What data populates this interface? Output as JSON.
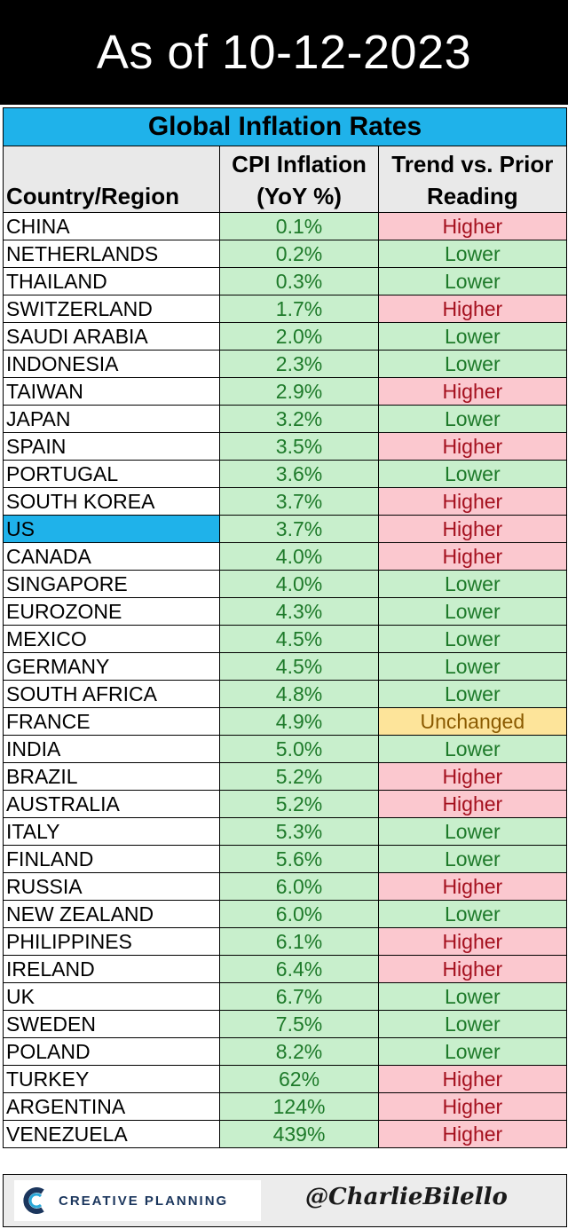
{
  "banner": {
    "text": "As of 10-12-2023"
  },
  "table": {
    "title": "Global Inflation Rates",
    "headers": {
      "country": "Country/Region",
      "cpi_line1": "CPI Inflation",
      "cpi_line2": "(YoY %)",
      "trend_line1": "Trend vs. Prior",
      "trend_line2": "Reading"
    },
    "rows": [
      {
        "country": "CHINA",
        "cpi": "0.1%",
        "trend": "Higher"
      },
      {
        "country": "NETHERLANDS",
        "cpi": "0.2%",
        "trend": "Lower"
      },
      {
        "country": "THAILAND",
        "cpi": "0.3%",
        "trend": "Lower"
      },
      {
        "country": "SWITZERLAND",
        "cpi": "1.7%",
        "trend": "Higher"
      },
      {
        "country": "SAUDI ARABIA",
        "cpi": "2.0%",
        "trend": "Lower"
      },
      {
        "country": "INDONESIA",
        "cpi": "2.3%",
        "trend": "Lower"
      },
      {
        "country": "TAIWAN",
        "cpi": "2.9%",
        "trend": "Higher"
      },
      {
        "country": "JAPAN",
        "cpi": "3.2%",
        "trend": "Lower"
      },
      {
        "country": "SPAIN",
        "cpi": "3.5%",
        "trend": "Higher"
      },
      {
        "country": "PORTUGAL",
        "cpi": "3.6%",
        "trend": "Lower"
      },
      {
        "country": "SOUTH KOREA",
        "cpi": "3.7%",
        "trend": "Higher"
      },
      {
        "country": "US",
        "cpi": "3.7%",
        "trend": "Higher",
        "highlight": true
      },
      {
        "country": "CANADA",
        "cpi": "4.0%",
        "trend": "Higher"
      },
      {
        "country": "SINGAPORE",
        "cpi": "4.0%",
        "trend": "Lower"
      },
      {
        "country": "EUROZONE",
        "cpi": "4.3%",
        "trend": "Lower"
      },
      {
        "country": "MEXICO",
        "cpi": "4.5%",
        "trend": "Lower"
      },
      {
        "country": "GERMANY",
        "cpi": "4.5%",
        "trend": "Lower"
      },
      {
        "country": "SOUTH AFRICA",
        "cpi": "4.8%",
        "trend": "Lower"
      },
      {
        "country": "FRANCE",
        "cpi": "4.9%",
        "trend": "Unchanged"
      },
      {
        "country": "INDIA",
        "cpi": "5.0%",
        "trend": "Lower"
      },
      {
        "country": "BRAZIL",
        "cpi": "5.2%",
        "trend": "Higher"
      },
      {
        "country": "AUSTRALIA",
        "cpi": "5.2%",
        "trend": "Higher"
      },
      {
        "country": "ITALY",
        "cpi": "5.3%",
        "trend": "Lower"
      },
      {
        "country": "FINLAND",
        "cpi": "5.6%",
        "trend": "Lower"
      },
      {
        "country": "RUSSIA",
        "cpi": "6.0%",
        "trend": "Higher"
      },
      {
        "country": "NEW ZEALAND",
        "cpi": "6.0%",
        "trend": "Lower"
      },
      {
        "country": "PHILIPPINES",
        "cpi": "6.1%",
        "trend": "Higher"
      },
      {
        "country": "IRELAND",
        "cpi": "6.4%",
        "trend": "Higher"
      },
      {
        "country": "UK",
        "cpi": "6.7%",
        "trend": "Lower"
      },
      {
        "country": "SWEDEN",
        "cpi": "7.5%",
        "trend": "Lower"
      },
      {
        "country": "POLAND",
        "cpi": "8.2%",
        "trend": "Lower"
      },
      {
        "country": "TURKEY",
        "cpi": "62%",
        "trend": "Higher"
      },
      {
        "country": "ARGENTINA",
        "cpi": "124%",
        "trend": "Higher"
      },
      {
        "country": "VENEZUELA",
        "cpi": "439%",
        "trend": "Higher"
      }
    ]
  },
  "footer": {
    "logo_text": "CREATIVE PLANNING",
    "logo_icon": "creative-planning-c-icon",
    "handle": "@CharlieBilello"
  },
  "colors": {
    "title_bg": "#1fb2ea",
    "higher_bg": "#fbc8cf",
    "higher_text": "#a4101e",
    "lower_bg": "#c8efcc",
    "lower_text": "#1e7a2a",
    "unchanged_bg": "#fde49a",
    "unchanged_text": "#8a5a00",
    "highlight_bg": "#1fb2ea"
  }
}
